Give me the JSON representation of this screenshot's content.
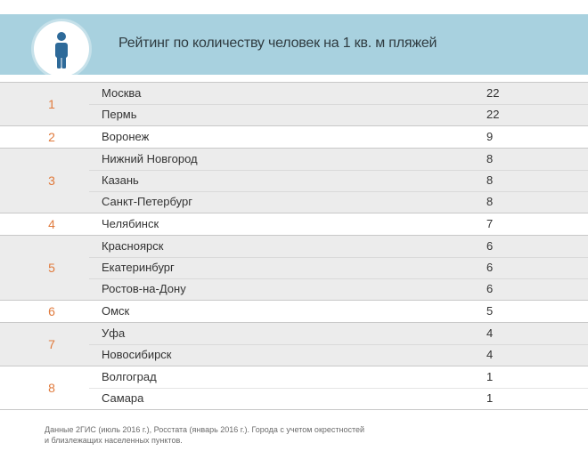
{
  "header": {
    "title": "Рейтинг по количеству человек на 1 кв. м пляжей",
    "icon": "person-icon",
    "colors": {
      "band": "#a8d1df",
      "icon": "#2e6a99",
      "rank": "#e07a3c"
    }
  },
  "groups": [
    {
      "rank": "1",
      "rows": [
        {
          "city": "Москва",
          "value": "22"
        },
        {
          "city": "Пермь",
          "value": "22"
        }
      ]
    },
    {
      "rank": "2",
      "rows": [
        {
          "city": "Воронеж",
          "value": "9"
        }
      ]
    },
    {
      "rank": "3",
      "rows": [
        {
          "city": "Нижний Новгород",
          "value": "8"
        },
        {
          "city": "Казань",
          "value": "8"
        },
        {
          "city": "Санкт-Петербург",
          "value": "8"
        }
      ]
    },
    {
      "rank": "4",
      "rows": [
        {
          "city": "Челябинск",
          "value": "7"
        }
      ]
    },
    {
      "rank": "5",
      "rows": [
        {
          "city": "Красноярск",
          "value": "6"
        },
        {
          "city": "Екатеринбург",
          "value": "6"
        },
        {
          "city": "Ростов-на-Дону",
          "value": "6"
        }
      ]
    },
    {
      "rank": "6",
      "rows": [
        {
          "city": "Омск",
          "value": "5"
        }
      ]
    },
    {
      "rank": "7",
      "rows": [
        {
          "city": "Уфа",
          "value": "4"
        },
        {
          "city": "Новосибирск",
          "value": "4"
        }
      ]
    },
    {
      "rank": "8",
      "rows": [
        {
          "city": "Волгоград",
          "value": "1"
        },
        {
          "city": "Самара",
          "value": "1"
        }
      ]
    }
  ],
  "footnote": {
    "line1": "Данные 2ГИС (июль 2016 г.), Росстата (январь 2016 г.). Города с учетом окрестностей",
    "line2": "и близлежащих населенных пунктов."
  }
}
